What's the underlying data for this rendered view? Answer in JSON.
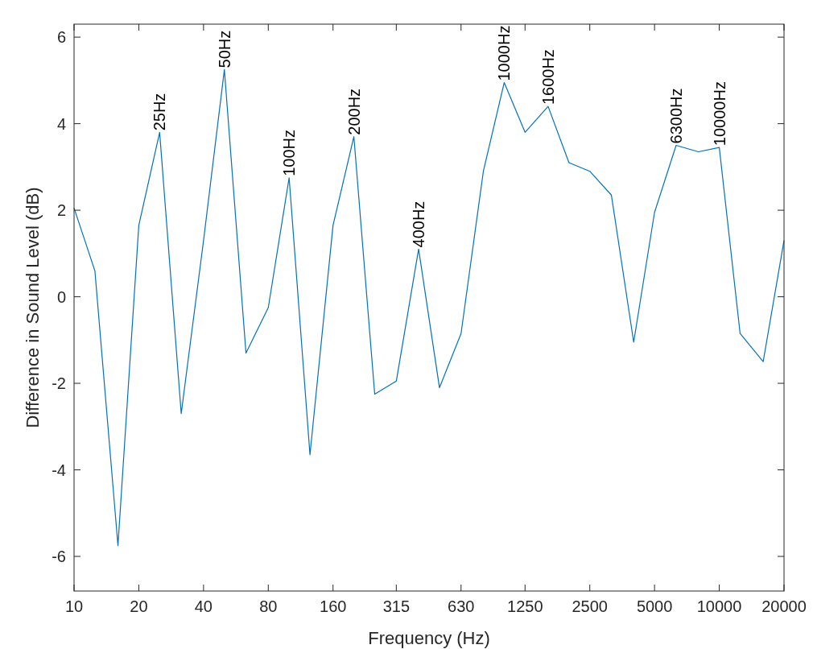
{
  "chart_data": {
    "type": "line",
    "xlabel": "Frequency (Hz)",
    "ylabel": "Difference in Sound Level (dB)",
    "x": [
      10,
      12.5,
      16,
      20,
      25,
      31.5,
      40,
      50,
      63,
      80,
      100,
      125,
      160,
      200,
      250,
      315,
      400,
      500,
      630,
      800,
      1000,
      1250,
      1600,
      2000,
      2500,
      3150,
      4000,
      5000,
      6300,
      8000,
      10000,
      12500,
      16000,
      20000
    ],
    "series": [
      {
        "color": "#0072bd",
        "values": [
          2.05,
          0.6,
          -5.75,
          1.65,
          3.8,
          -2.7,
          1.3,
          5.25,
          -1.3,
          -0.25,
          2.75,
          -3.65,
          1.65,
          3.7,
          -2.25,
          -1.95,
          1.1,
          -2.1,
          -0.85,
          2.9,
          4.95,
          3.8,
          4.4,
          3.1,
          2.9,
          2.35,
          -1.05,
          1.95,
          3.5,
          3.35,
          3.45,
          -0.85,
          -1.5,
          1.3
        ]
      }
    ],
    "log": "x",
    "xlim": [
      10,
      20000
    ],
    "xticks": [
      10,
      20,
      40,
      80,
      160,
      315,
      630,
      1250,
      2500,
      5000,
      10000,
      20000
    ],
    "ylim": [
      -6.8,
      6.3
    ],
    "yticks": [
      -6,
      -4,
      -2,
      0,
      2,
      4,
      6
    ],
    "grid": false,
    "marker": "none",
    "line_style": "solid",
    "annotations": [
      {
        "text": "25Hz",
        "x": 25,
        "y": 3.8
      },
      {
        "text": "50Hz",
        "x": 50,
        "y": 5.25
      },
      {
        "text": "100Hz",
        "x": 100,
        "y": 2.75
      },
      {
        "text": "200Hz",
        "x": 200,
        "y": 3.7
      },
      {
        "text": "400Hz",
        "x": 400,
        "y": 1.1
      },
      {
        "text": "1000Hz",
        "x": 1000,
        "y": 4.95
      },
      {
        "text": "1600Hz",
        "x": 1600,
        "y": 4.4
      },
      {
        "text": "6300Hz",
        "x": 6300,
        "y": 3.5
      },
      {
        "text": "10000Hz",
        "x": 10000,
        "y": 3.45
      }
    ]
  }
}
